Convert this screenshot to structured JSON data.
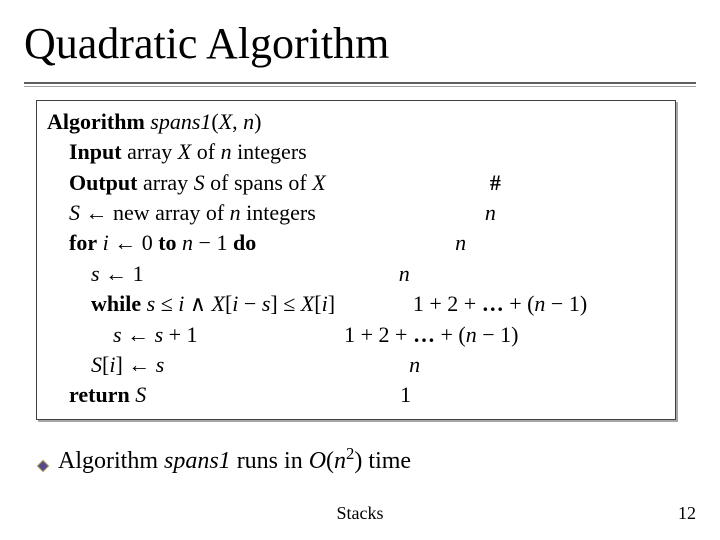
{
  "title": "Quadratic Algorithm",
  "box": {
    "lines": [
      {
        "left_html": "<span class='b'>Algorithm</span> <span class='i'>spans1</span>(<span class='i'>X</span>, <span class='i'>n</span>)",
        "right_html": ""
      },
      {
        "left_html": "    <span class='b'>Input</span> array <span class='i'>X</span> of <span class='i'>n</span> integers",
        "right_html": ""
      },
      {
        "left_html": "    <span class='b'>Output</span> array <span class='i'>S</span> of spans of <span class='i'>X</span>",
        "right_html": "<span class='b'>#</span>"
      },
      {
        "left_html": "    <span class='i'>S</span> ← new array of <span class='i'>n</span> integers",
        "right_html": "<span class='i'>n</span>"
      },
      {
        "left_html": "    <span class='b'>for</span> <span class='i'>i</span> ← 0 <span class='b'>to</span> <span class='i'>n</span> − 1 <span class='b'>do</span>",
        "right_html": "<span class='i'>n</span>"
      },
      {
        "left_html": "        <span class='i'>s</span> ← 1",
        "right_html": "<span class='i'>n</span>"
      },
      {
        "left_html": "        <span class='b'>while</span> <span class='i'>s</span> ≤ <span class='i'>i</span> ∧ <span class='i'>X</span>[<span class='i'>i</span> − <span class='i'>s</span>] ≤ <span class='i'>X</span>[<span class='i'>i</span>]",
        "right_html": "1 + 2 + <span class='b'>…</span> + (<span class='i'>n</span> − 1)"
      },
      {
        "left_html": "            <span class='i'>s</span> ← <span class='i'>s</span> + 1",
        "right_html": "1 + 2 + <span class='b'>…</span> + (<span class='i'>n</span> − 1)"
      },
      {
        "left_html": "        <span class='i'>S</span>[<span class='i'>i</span>] ← <span class='i'>s</span>",
        "right_html": "<span class='i'>n</span>"
      },
      {
        "left_html": "    <span class='b'>return</span> <span class='i'>S</span>",
        "right_html": "1"
      }
    ]
  },
  "bullet": {
    "pre": "Algorithm ",
    "name": "spans1",
    "mid": " runs in ",
    "big_o": "O",
    "open": "(",
    "var": "n",
    "exp": "2",
    "close": ")",
    "post": " time"
  },
  "footer": {
    "center": "Stacks",
    "page": "12"
  },
  "colors": {
    "rule1": "#606060",
    "rule2": "#a0a0a0",
    "box_border": "#404040",
    "diamond_fill": "#5b4a8a",
    "diamond_stroke": "#b0a860"
  }
}
